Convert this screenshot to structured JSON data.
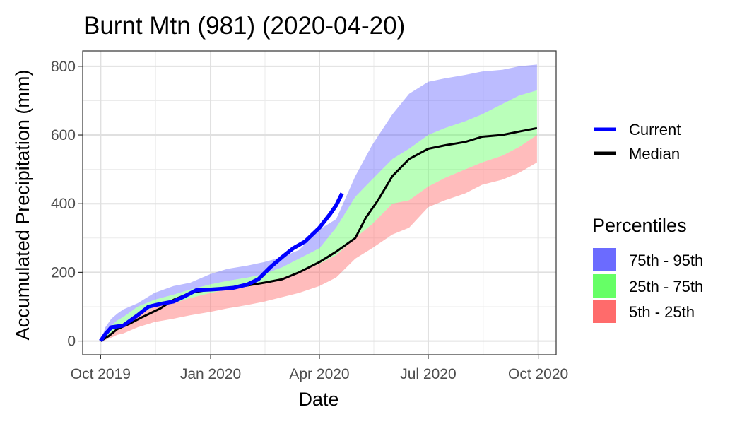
{
  "chart_data": {
    "type": "area",
    "title": "Burnt Mtn (981) (2020-04-20)",
    "xlabel": "Date",
    "ylabel": "Accumulated Precipitation (mm)",
    "x_ticks": [
      "Oct 2019",
      "Jan 2020",
      "Apr 2020",
      "Jul 2020",
      "Oct 2020"
    ],
    "x_tick_dates": [
      "2019-10-01",
      "2020-01-01",
      "2020-04-01",
      "2020-07-01",
      "2020-10-01"
    ],
    "xlim": [
      "2019-09-16",
      "2020-10-16"
    ],
    "y_ticks": [
      0,
      200,
      400,
      600,
      800
    ],
    "ylim": [
      -40,
      845
    ],
    "grid": true,
    "legend_position": "right",
    "colors": {
      "current": "#0000ff",
      "median": "#000000",
      "p75_95": "#6b6bff",
      "p25_75": "#66ff66",
      "p5_25": "#ff6b6b"
    },
    "legend": {
      "lines": [
        "Current",
        "Median"
      ],
      "percentiles_title": "Percentiles",
      "percentiles": [
        "75th - 95th",
        "25th - 75th",
        "5th - 25th"
      ]
    },
    "bands": {
      "x": [
        "2019-10-01",
        "2019-10-05",
        "2019-10-10",
        "2019-10-15",
        "2019-10-20",
        "2019-11-01",
        "2019-11-15",
        "2019-12-01",
        "2019-12-15",
        "2020-01-01",
        "2020-01-15",
        "2020-02-01",
        "2020-02-15",
        "2020-03-01",
        "2020-03-15",
        "2020-04-01",
        "2020-04-15",
        "2020-05-01",
        "2020-05-15",
        "2020-06-01",
        "2020-06-15",
        "2020-07-01",
        "2020-07-15",
        "2020-08-01",
        "2020-08-15",
        "2020-09-01",
        "2020-09-15",
        "2020-09-30"
      ],
      "p5": [
        0,
        3,
        10,
        18,
        22,
        40,
        55,
        65,
        75,
        85,
        95,
        105,
        115,
        128,
        140,
        160,
        185,
        240,
        270,
        310,
        330,
        390,
        410,
        430,
        455,
        470,
        490,
        520
      ],
      "p25": [
        0,
        8,
        20,
        35,
        45,
        75,
        100,
        110,
        125,
        140,
        150,
        158,
        168,
        185,
        200,
        225,
        250,
        300,
        340,
        400,
        410,
        450,
        475,
        500,
        520,
        540,
        565,
        600
      ],
      "p75": [
        0,
        20,
        45,
        60,
        70,
        100,
        120,
        135,
        150,
        165,
        175,
        185,
        195,
        215,
        240,
        270,
        330,
        420,
        470,
        530,
        560,
        600,
        620,
        640,
        660,
        690,
        715,
        730
      ],
      "p95": [
        0,
        40,
        65,
        80,
        92,
        110,
        140,
        160,
        170,
        195,
        210,
        220,
        230,
        245,
        265,
        325,
        355,
        480,
        570,
        660,
        720,
        755,
        765,
        775,
        785,
        790,
        800,
        805
      ]
    },
    "series": [
      {
        "name": "Median",
        "x": [
          "2019-10-01",
          "2019-10-08",
          "2019-10-15",
          "2019-10-25",
          "2019-11-05",
          "2019-11-20",
          "2019-12-01",
          "2019-12-15",
          "2020-01-01",
          "2020-01-15",
          "2020-02-01",
          "2020-02-15",
          "2020-03-01",
          "2020-03-15",
          "2020-04-01",
          "2020-04-15",
          "2020-05-01",
          "2020-05-10",
          "2020-05-20",
          "2020-06-01",
          "2020-06-15",
          "2020-07-01",
          "2020-07-15",
          "2020-08-01",
          "2020-08-15",
          "2020-09-01",
          "2020-09-15",
          "2020-09-30"
        ],
        "values": [
          0,
          15,
          35,
          50,
          70,
          95,
          120,
          140,
          150,
          152,
          162,
          170,
          180,
          200,
          230,
          260,
          300,
          360,
          410,
          480,
          530,
          560,
          570,
          580,
          595,
          600,
          610,
          620
        ]
      },
      {
        "name": "Current",
        "x": [
          "2019-10-01",
          "2019-10-05",
          "2019-10-10",
          "2019-10-20",
          "2019-11-01",
          "2019-11-10",
          "2019-11-20",
          "2019-12-01",
          "2019-12-10",
          "2019-12-20",
          "2020-01-01",
          "2020-01-10",
          "2020-01-20",
          "2020-02-01",
          "2020-02-10",
          "2020-02-20",
          "2020-03-01",
          "2020-03-10",
          "2020-03-20",
          "2020-04-01",
          "2020-04-10",
          "2020-04-15",
          "2020-04-20"
        ],
        "values": [
          0,
          20,
          40,
          45,
          75,
          100,
          108,
          115,
          130,
          148,
          150,
          152,
          155,
          165,
          180,
          215,
          245,
          270,
          290,
          330,
          370,
          395,
          430
        ]
      }
    ]
  }
}
